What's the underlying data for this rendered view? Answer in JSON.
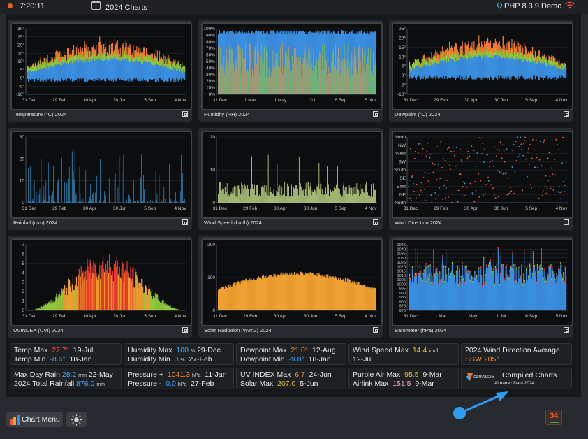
{
  "header": {
    "time": "7:20:11",
    "title": "2024 Charts",
    "version": "PHP 8.3.9 Demo"
  },
  "charts": [
    {
      "caption": "Temperature (°C) 2024",
      "x_ticks": [
        "31 Dec",
        "29 Feb",
        "30 Apr",
        "30 Jun",
        "5 Sep",
        "4 Nov"
      ],
      "y_ticks": [
        "30°",
        "25°",
        "20°",
        "15°",
        "10°",
        "5°",
        "0°",
        "-5°",
        "-10°"
      ]
    },
    {
      "caption": "Humidity (RH) 2024",
      "x_ticks": [
        "31 Dec",
        "1 Mar",
        "1 May",
        "1 Jul",
        "6 Sep",
        "5 Nov"
      ],
      "y_ticks": [
        "100%",
        "90%",
        "80%",
        "70%",
        "60%",
        "50%",
        "40%",
        "30%",
        "20%",
        "10%",
        "0%"
      ]
    },
    {
      "caption": "Dewpoint (°C) 2024",
      "x_ticks": [
        "31 Dec",
        "29 Feb",
        "30 Apr",
        "30 Jun",
        "5 Sep",
        "4 Nov"
      ],
      "y_ticks": [
        "25°",
        "20°",
        "15°",
        "10°",
        "5°",
        "0°",
        "-5°",
        "-10°"
      ]
    },
    {
      "caption": "Rainfall (mm) 2024",
      "x_ticks": [
        "31 Dec",
        "29 Feb",
        "30 Apr",
        "30 Jun",
        "5 Sep",
        "4 Nov"
      ],
      "y_ticks": [
        "30",
        "20",
        "10",
        "0"
      ]
    },
    {
      "caption": "Wind Speed (km/h) 2024",
      "x_ticks": [
        "31 Dec",
        "29 Feb",
        "30 Apr",
        "30 Jun",
        "5 Sep",
        "4 Nov"
      ],
      "y_ticks": [
        "20",
        "10",
        "0"
      ]
    },
    {
      "caption": "Wind Direction 2024",
      "x_ticks": [
        "31 Dec",
        "29 Feb",
        "30 Apr",
        "30 Jun",
        "5 Sep",
        "4 Nov"
      ],
      "y_ticks": [
        "North",
        "NW",
        "West",
        "SW",
        "South",
        "SE",
        "East",
        "NE",
        "North"
      ]
    },
    {
      "caption": "UVINDEX (UVI) 2024",
      "x_ticks": [
        "31 Dec",
        "29 Feb",
        "30 Apr",
        "30 Jun",
        "5 Sep",
        "4 Nov"
      ],
      "y_ticks": [
        "7",
        "6",
        "5",
        "4",
        "3",
        "2",
        "1",
        "0"
      ]
    },
    {
      "caption": "Solar Radiation (W/m2) 2024",
      "x_ticks": [
        "31 Dec",
        "29 Feb",
        "30 Apr",
        "30 Jun",
        "5 Sep",
        "4 Nov"
      ],
      "y_ticks": [
        "200",
        "100",
        "0"
      ]
    },
    {
      "caption": "Barometer (hPa) 2024",
      "x_ticks": [
        "31 Dec",
        "1 Mar",
        "1 May",
        "1 Jul",
        "6 Sep",
        "5 Nov"
      ],
      "y_ticks": [
        "1045",
        "1040",
        "1035",
        "1030",
        "1025",
        "1020",
        "1015",
        "1010",
        "1005",
        "1000",
        "995",
        "990",
        "985",
        "980",
        "975",
        "970"
      ]
    }
  ],
  "stats": {
    "temp_max_label": "Temp Max",
    "temp_max_value": "27.7°",
    "temp_max_date": "19-Jul",
    "temp_min_label": "Temp Min",
    "temp_min_value": "-8.6°",
    "temp_min_date": "18-Jan",
    "hum_max_label": "Humidity Max",
    "hum_max_value": "100",
    "hum_unit": "%",
    "hum_max_date": "29-Dec",
    "hum_min_label": "Humidity Min",
    "hum_min_value": "0",
    "hum_min_date": "27-Feb",
    "dew_max_label": "Dewpoint Max",
    "dew_max_value": "21.0°",
    "dew_max_date": "12-Aug",
    "dew_min_label": "Dewpoint Min",
    "dew_min_value": "-9.8°",
    "dew_min_date": "18-Jan",
    "wind_max_label": "Wind Speed Max",
    "wind_max_value": "14.4",
    "wind_unit": "km/h",
    "wind_max_date": "12-Jul",
    "wdir_label": "2024 Wind Direction Average",
    "wdir_value": "SSW 205°",
    "rain_day_label": "Max Day Rain",
    "rain_day_value": "28.2",
    "rain_unit": "mm",
    "rain_day_date": "22-May",
    "rain_total_label": "2024 Total Rainfall",
    "rain_total_value": "876.0",
    "press_max_label": "Pressure +",
    "press_max_value": "1041.3",
    "press_unit": "hPa",
    "press_max_date": "11-Jan",
    "press_min_label": "Pressure -",
    "press_min_value": "0.0",
    "press_min_date": "27-Feb",
    "uv_max_label": "UV INDEX Max",
    "uv_max_value": "6.7",
    "uv_max_date": "24-Jun",
    "solar_max_label": "Solar Max",
    "solar_max_value": "207.0",
    "solar_max_date": "5-Jun",
    "pa_max_label": "Purple Air Max",
    "pa_max_value": "95.5",
    "pa_max_date": "9-Mar",
    "al_max_label": "Airlink Max",
    "al_max_value": "151.5",
    "al_max_date": "9-Mar",
    "canvas_logo": "canvasJS",
    "compiled_label": "Compiled Charts",
    "almanac_label": "Almanac Data 2024"
  },
  "footer": {
    "chart_menu": "Chart Menu",
    "badge": "34"
  }
}
